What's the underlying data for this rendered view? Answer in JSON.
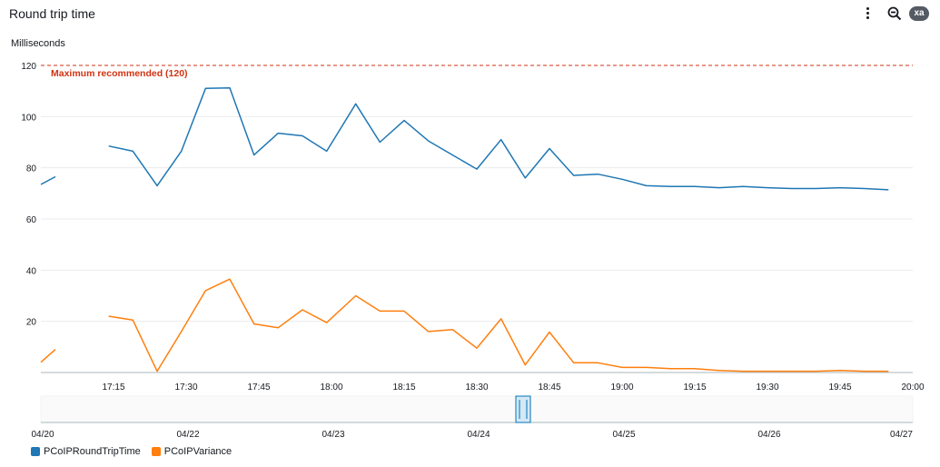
{
  "header": {
    "title": "Round trip time",
    "zoom_badge": "xa"
  },
  "colors": {
    "series_1": "#1f77b4",
    "series_2": "#ff7f0e",
    "threshold": "#d13212",
    "grid": "#e9ebed",
    "axis_text": "#16191f"
  },
  "chart_data": {
    "type": "line",
    "ylabel": "Milliseconds",
    "ylim": [
      0,
      120
    ],
    "y_ticks": [
      20,
      40,
      60,
      80,
      100,
      120
    ],
    "xlim": [
      "17:00",
      "20:00"
    ],
    "x_ticks": [
      "17:15",
      "17:30",
      "17:45",
      "18:00",
      "18:15",
      "18:30",
      "18:45",
      "19:00",
      "19:15",
      "19:30",
      "19:45",
      "20:00"
    ],
    "threshold": {
      "value": 120,
      "label": "Maximum recommended (120)"
    },
    "series": [
      {
        "name": "PCoIPRoundTripTime",
        "color": "#1f77b4",
        "segments": [
          [
            [
              "17:00",
              73.5
            ],
            [
              "17:03",
              76.5
            ]
          ],
          [
            [
              "17:14",
              88.5
            ],
            [
              "17:19",
              86.5
            ],
            [
              "17:24",
              73
            ],
            [
              "17:29",
              86.5
            ],
            [
              "17:34",
              111
            ],
            [
              "17:39",
              111.2
            ],
            [
              "17:44",
              85
            ],
            [
              "17:49",
              93.5
            ],
            [
              "17:54",
              92.5
            ],
            [
              "17:59",
              86.5
            ],
            [
              "18:05",
              105
            ],
            [
              "18:10",
              90
            ],
            [
              "18:15",
              98.5
            ],
            [
              "18:20",
              90.5
            ],
            [
              "18:25",
              85
            ],
            [
              "18:30",
              79.5
            ],
            [
              "18:35",
              91
            ],
            [
              "18:40",
              76
            ],
            [
              "18:45",
              87.5
            ],
            [
              "18:50",
              77
            ],
            [
              "18:55",
              77.5
            ],
            [
              "19:00",
              75.5
            ],
            [
              "19:05",
              73
            ],
            [
              "19:10",
              72.7
            ],
            [
              "19:15",
              72.7
            ],
            [
              "19:20",
              72.2
            ],
            [
              "19:25",
              72.7
            ],
            [
              "19:30",
              72.2
            ],
            [
              "19:35",
              71.9
            ],
            [
              "19:40",
              71.9
            ],
            [
              "19:45",
              72.2
            ],
            [
              "19:50",
              71.9
            ],
            [
              "19:55",
              71.4
            ]
          ]
        ]
      },
      {
        "name": "PCoIPVariance",
        "color": "#ff7f0e",
        "segments": [
          [
            [
              "17:00",
              4
            ],
            [
              "17:03",
              9
            ]
          ],
          [
            [
              "17:14",
              22
            ],
            [
              "17:19",
              20.5
            ],
            [
              "17:24",
              0.5
            ],
            [
              "17:29",
              16
            ],
            [
              "17:34",
              32
            ],
            [
              "17:39",
              36.5
            ],
            [
              "17:44",
              19
            ],
            [
              "17:49",
              17.5
            ],
            [
              "17:54",
              24.5
            ],
            [
              "17:59",
              19.5
            ],
            [
              "18:05",
              30
            ],
            [
              "18:10",
              24
            ],
            [
              "18:15",
              24
            ],
            [
              "18:20",
              16
            ],
            [
              "18:25",
              16.8
            ],
            [
              "18:30",
              9.5
            ],
            [
              "18:35",
              21
            ],
            [
              "18:40",
              3
            ],
            [
              "18:45",
              15.8
            ],
            [
              "18:50",
              3.8
            ],
            [
              "18:55",
              3.8
            ],
            [
              "19:00",
              2
            ],
            [
              "19:05",
              2
            ],
            [
              "19:10",
              1.5
            ],
            [
              "19:15",
              1.5
            ],
            [
              "19:20",
              0.8
            ],
            [
              "19:25",
              0.5
            ],
            [
              "19:30",
              0.5
            ],
            [
              "19:35",
              0.5
            ],
            [
              "19:40",
              0.5
            ],
            [
              "19:45",
              0.8
            ],
            [
              "19:50",
              0.5
            ],
            [
              "19:55",
              0.5
            ]
          ]
        ]
      }
    ]
  },
  "navigator": {
    "x_ticks": [
      "04/20",
      "04/22",
      "04/23",
      "04/24",
      "04/25",
      "04/26",
      "04/27"
    ],
    "range_start": "04/20",
    "range_end": "04/27"
  },
  "legend": {
    "items": [
      {
        "label": "PCoIPRoundTripTime",
        "color": "#1f77b4"
      },
      {
        "label": "PCoIPVariance",
        "color": "#ff7f0e"
      }
    ]
  }
}
